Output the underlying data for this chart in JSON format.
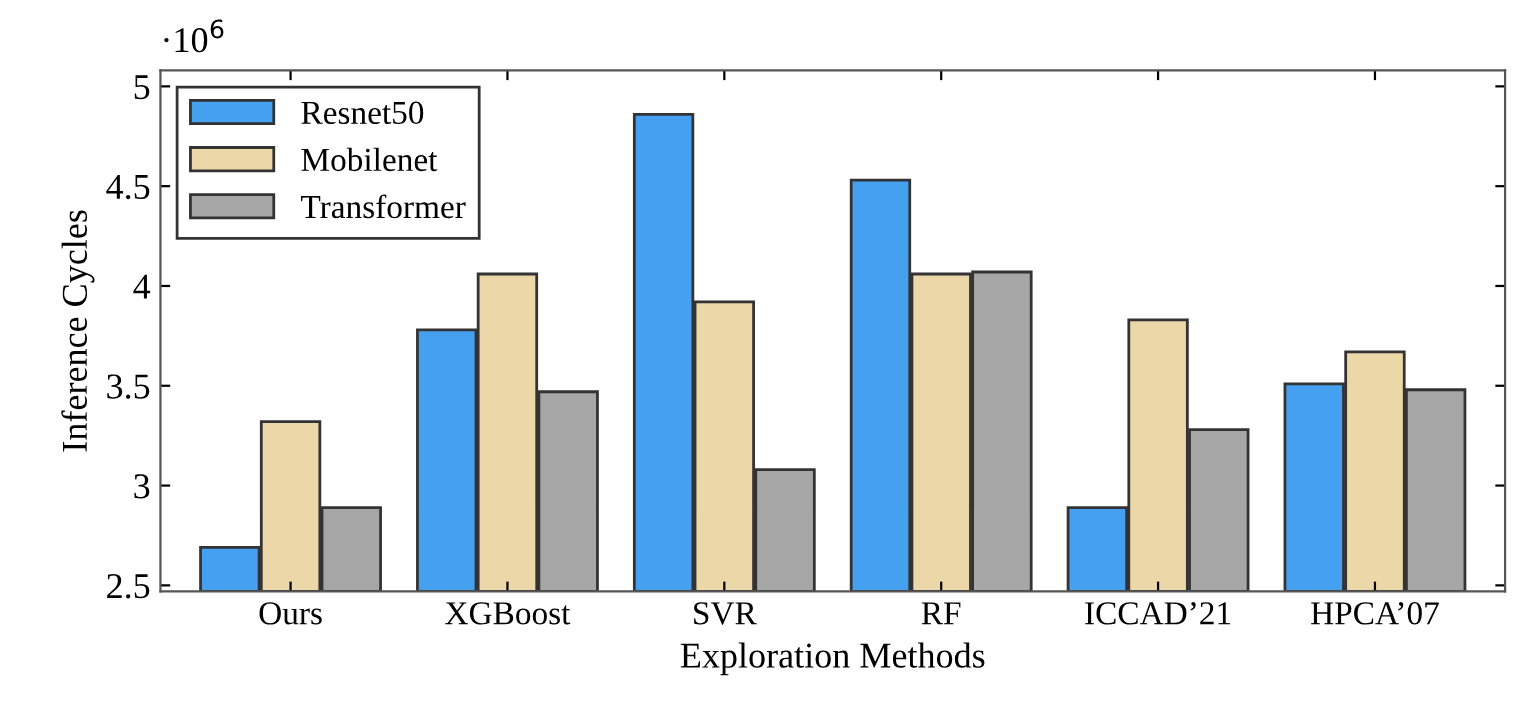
{
  "chart_data": {
    "type": "bar",
    "xlabel": "Exploration Methods",
    "ylabel": "Inference Cycles",
    "annotations": [
      "·10$^{6}$"
    ],
    "categories": [
      "Ours",
      "XGBoost",
      "SVR",
      "RF",
      "ICCAD’21",
      "HPCA’07"
    ],
    "series": [
      {
        "name": "Resnet50",
        "color": "#46a0f0",
        "values": [
          2.69,
          3.78,
          4.86,
          4.53,
          2.89,
          3.51
        ]
      },
      {
        "name": "Mobilenet",
        "color": "#ebd7a8",
        "values": [
          3.32,
          4.06,
          3.92,
          4.06,
          3.83,
          3.67
        ]
      },
      {
        "name": "Transformer",
        "color": "#a6a6a6",
        "values": [
          2.89,
          3.47,
          3.08,
          4.07,
          3.28,
          3.48
        ]
      }
    ],
    "ylim": [
      2.47,
      5.08
    ],
    "yticks": [
      2.5,
      3,
      3.5,
      4,
      4.5,
      5
    ],
    "grid": false,
    "legend": "top left"
  }
}
